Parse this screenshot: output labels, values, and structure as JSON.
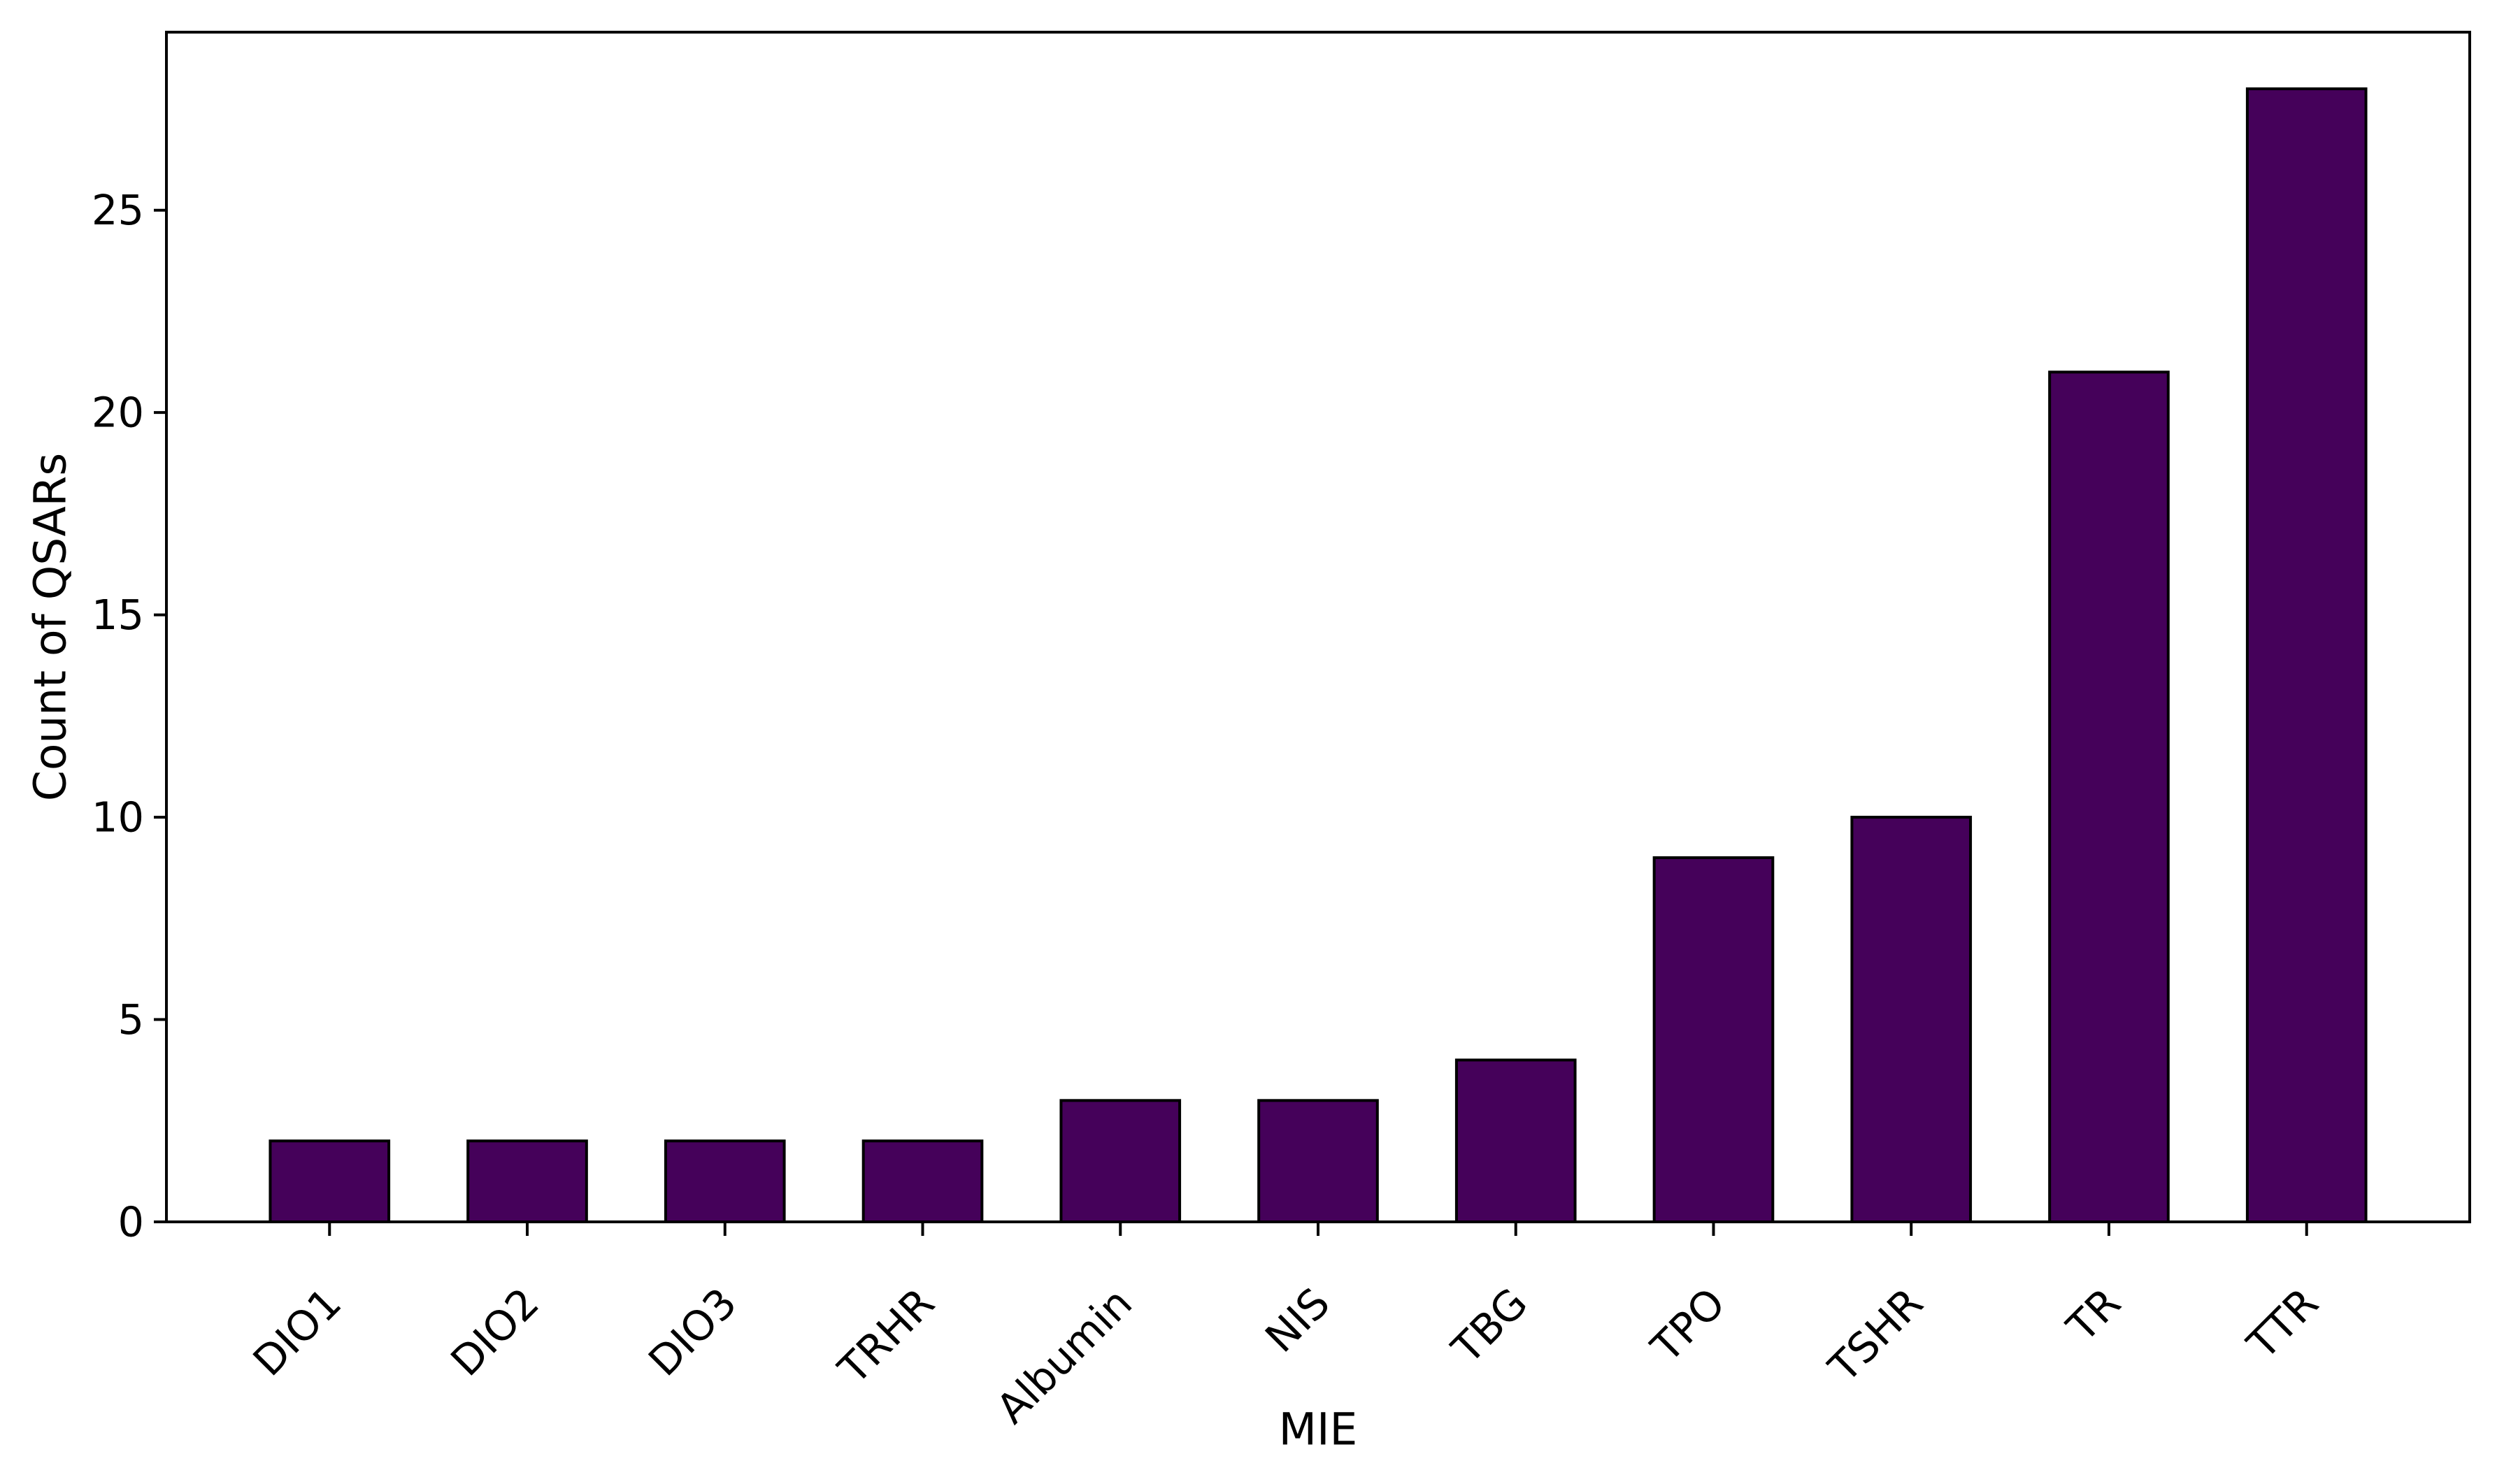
{
  "chart_data": {
    "type": "bar",
    "title": "",
    "categories": [
      "DIO1",
      "DIO2",
      "DIO3",
      "TRHR",
      "Albumin",
      "NIS",
      "TBG",
      "TPO",
      "TSHR",
      "TR",
      "TTR"
    ],
    "values": [
      2,
      2,
      2,
      2,
      3,
      3,
      4,
      9,
      10,
      21,
      28
    ],
    "xlabel": "MIE",
    "ylabel": "Count of QSARs",
    "yticks": [
      0,
      5,
      10,
      15,
      20,
      25
    ],
    "ylim": [
      0,
      29.4
    ],
    "x_tick_rotation_deg": 45,
    "bar_color": "#45015A",
    "bar_edge_color": "#000000",
    "axis_color": "#000000",
    "background_color": "#FFFFFF",
    "grid": "off",
    "legend": "none"
  }
}
